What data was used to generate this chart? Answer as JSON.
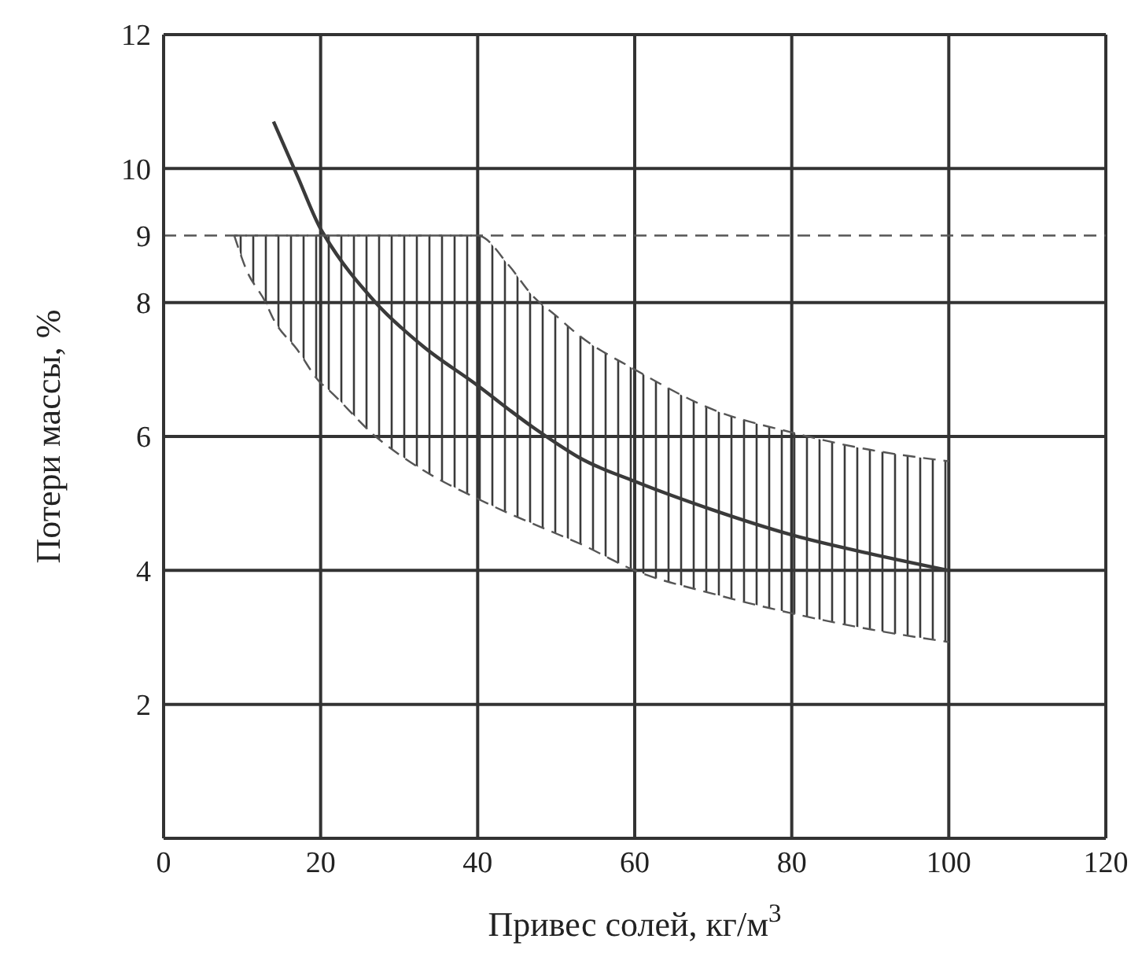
{
  "chart_data": {
    "type": "line",
    "xlabel": "Привес солей, кг/м$^{3}$",
    "ylabel": "Потери массы, %",
    "xlim": [
      0,
      120
    ],
    "xticks": [
      0,
      20,
      40,
      60,
      80,
      100,
      120
    ],
    "ylim": [
      0,
      12
    ],
    "yticks": [
      2,
      4,
      6,
      8,
      9,
      10,
      12
    ],
    "grid": true,
    "ref_lines": [
      {
        "axis": "y",
        "value": 9,
        "line_style": "dashed",
        "color": "#555555"
      }
    ],
    "x": [
      9,
      10.5,
      13,
      14,
      17,
      20,
      20.5,
      27,
      33,
      40,
      44,
      47,
      50,
      53,
      60,
      70,
      80,
      90,
      100
    ],
    "series": [
      {
        "color": "#3a3a3a",
        "line_style": "solid",
        "values": [
          null,
          null,
          null,
          10.7,
          9.9,
          9.1,
          9,
          8,
          7.35,
          6.76,
          6.4,
          6.14,
          5.9,
          5.68,
          5.33,
          4.9,
          4.53,
          4.25,
          4
        ],
        "lower": [
          9,
          8.5,
          8,
          7.75,
          7.3,
          6.8,
          6.75,
          6,
          5.5,
          5.07,
          4.85,
          4.7,
          4.55,
          4.4,
          4,
          3.65,
          3.36,
          3.12,
          2.93
        ],
        "upper": [
          9,
          9,
          9,
          9,
          9,
          9,
          9,
          9,
          9,
          9,
          8.55,
          8.1,
          7.8,
          7.5,
          7,
          6.4,
          6.06,
          5.8,
          5.63
        ]
      },
      {
        "color": "#555555",
        "line_style": "dashed",
        "values": [
          9,
          8.5,
          8,
          7.75,
          7.3,
          6.8,
          6.75,
          6,
          5.5,
          5.07,
          4.85,
          4.7,
          4.55,
          4.4,
          4,
          3.65,
          3.36,
          3.12,
          2.93
        ]
      },
      {
        "color": "#555555",
        "line_style": "dashed",
        "values": [
          9,
          9,
          9,
          9,
          9,
          9,
          9,
          9,
          9,
          9,
          8.55,
          8.1,
          7.8,
          7.5,
          7,
          6.4,
          6.06,
          5.8,
          5.63
        ]
      }
    ]
  }
}
